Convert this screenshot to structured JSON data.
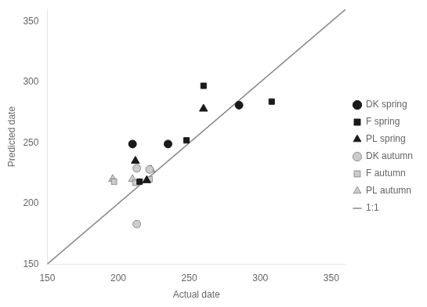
{
  "chart_data": {
    "type": "scatter",
    "xlabel": "Actual date",
    "ylabel": "Predicted date",
    "xlim": [
      150,
      360
    ],
    "ylim": [
      150,
      360
    ],
    "xticks": [
      150,
      200,
      250,
      300,
      350
    ],
    "yticks": [
      150,
      200,
      250,
      300,
      350
    ],
    "grid": false,
    "legend": "right",
    "series": [
      {
        "name": "DK spring",
        "type": "scatter",
        "marker": "circle",
        "color": "#1a1a1a",
        "x": [
          210,
          235,
          285
        ],
        "values": [
          249,
          249,
          281
        ]
      },
      {
        "name": "F spring",
        "type": "scatter",
        "marker": "square",
        "color": "#1a1a1a",
        "x": [
          215,
          248,
          260,
          308
        ],
        "values": [
          218,
          252,
          297,
          284
        ]
      },
      {
        "name": "PL spring",
        "type": "scatter",
        "marker": "triangle",
        "color": "#1a1a1a",
        "x": [
          212,
          220,
          260
        ],
        "values": [
          235,
          219,
          278
        ]
      },
      {
        "name": "DK autumn",
        "type": "scatter",
        "marker": "circle",
        "color": "#cccccc",
        "x": [
          213,
          222,
          213
        ],
        "values": [
          229,
          228,
          183
        ]
      },
      {
        "name": "F autumn",
        "type": "scatter",
        "marker": "square",
        "color": "#cccccc",
        "x": [
          197,
          212,
          222
        ],
        "values": [
          218,
          217,
          220
        ]
      },
      {
        "name": "PL autumn",
        "type": "scatter",
        "marker": "triangle",
        "color": "#cccccc",
        "x": [
          196,
          210,
          223
        ],
        "values": [
          220,
          220,
          228
        ]
      },
      {
        "name": "1:1",
        "type": "line",
        "line_style": "solid",
        "color": "#888888",
        "x": [
          150,
          360
        ],
        "values": [
          150,
          360
        ]
      }
    ]
  }
}
